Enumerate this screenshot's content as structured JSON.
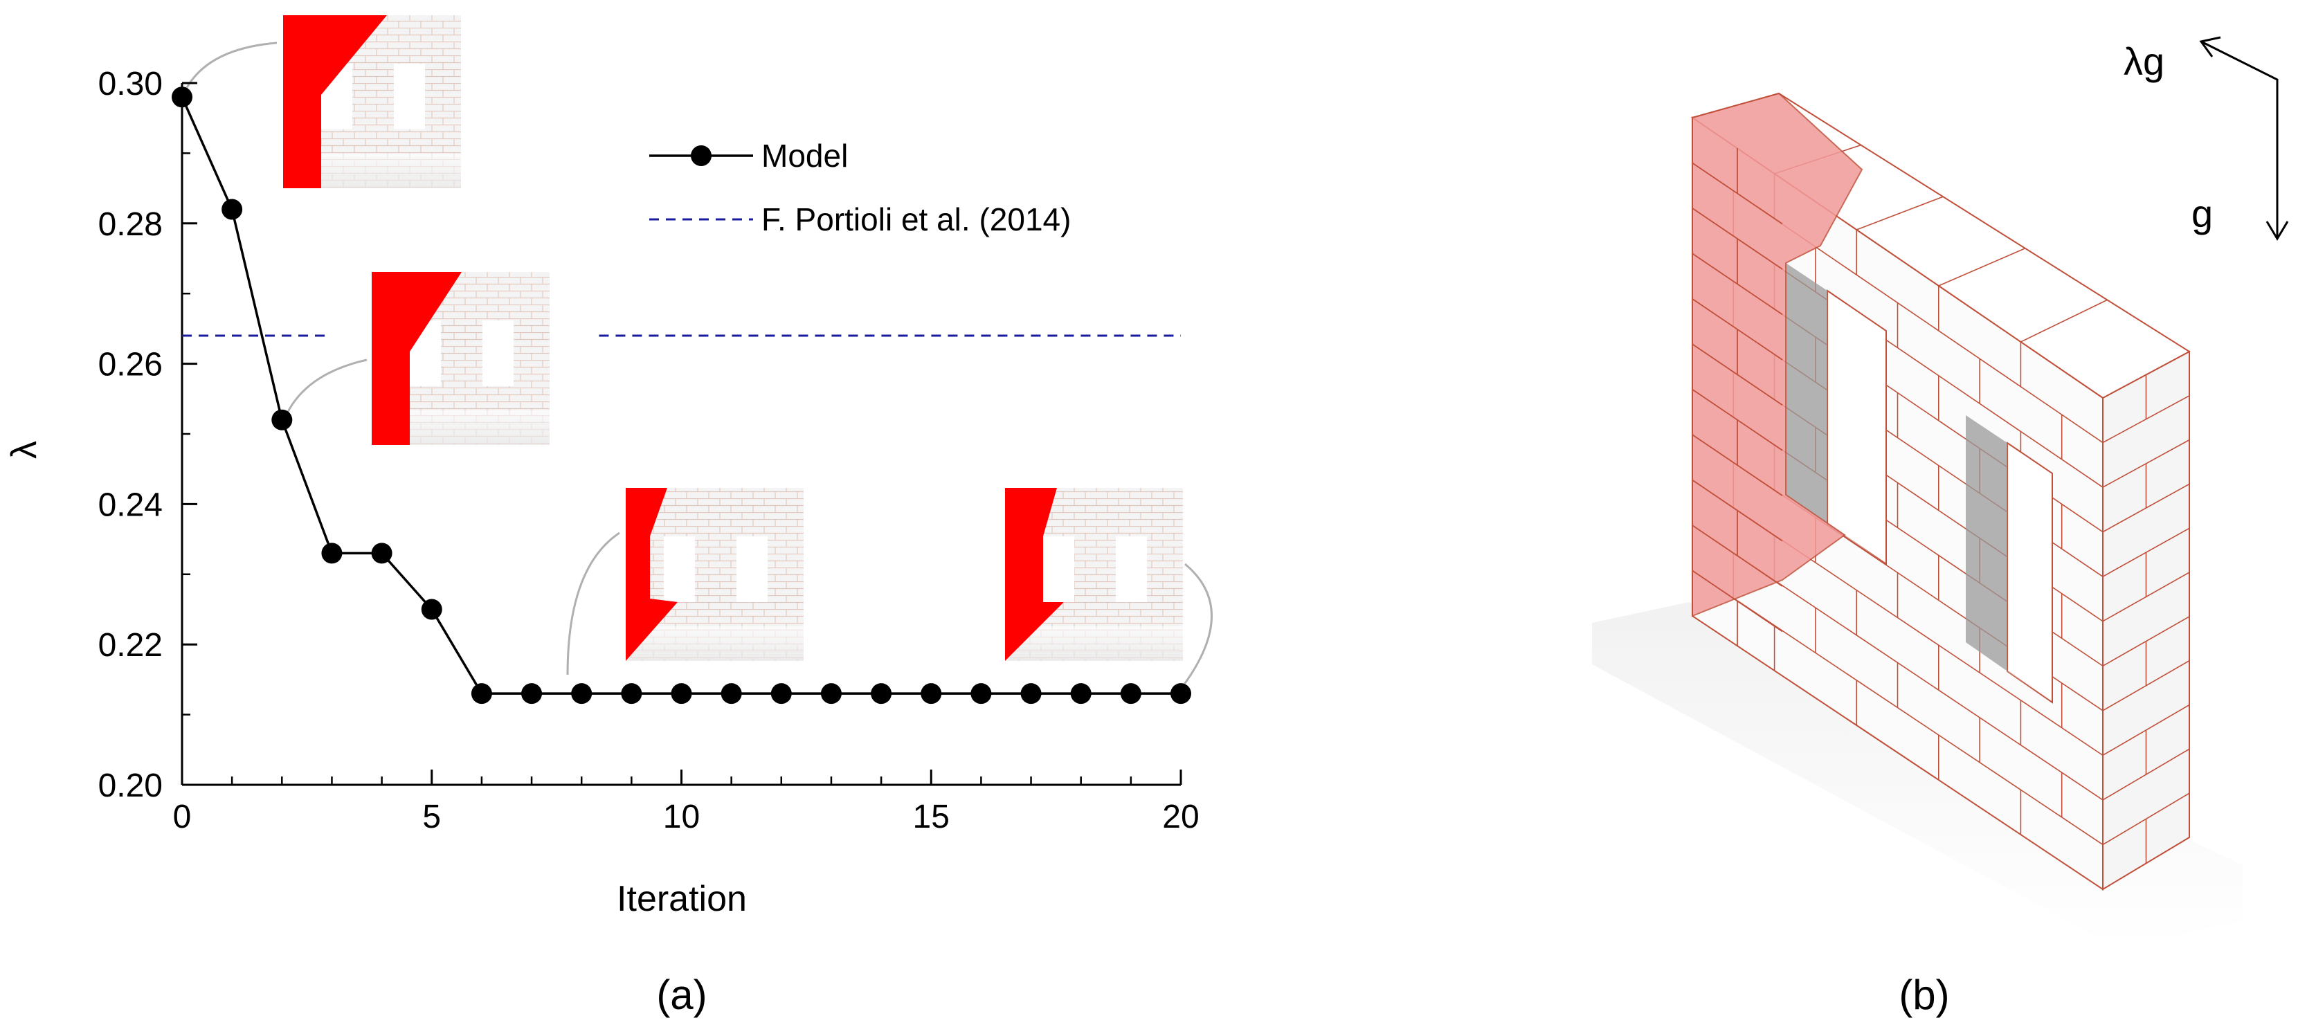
{
  "chart_data": {
    "type": "line",
    "xlabel": "Iteration",
    "ylabel": "λ",
    "xlim": [
      0,
      20
    ],
    "ylim": [
      0.2,
      0.3
    ],
    "xticks": [
      0,
      5,
      10,
      15,
      20
    ],
    "yticks": [
      0.2,
      0.22,
      0.24,
      0.26,
      0.28,
      0.3
    ],
    "xtick_labels": [
      "0",
      "5",
      "10",
      "15",
      "20"
    ],
    "ytick_labels": [
      "0.20",
      "0.22",
      "0.24",
      "0.26",
      "0.28",
      "0.30"
    ],
    "grid": false,
    "legend_position": "top-right",
    "series": [
      {
        "name": "Model",
        "style": "solid line with filled circle markers",
        "color": "#000000",
        "x": [
          0,
          1,
          2,
          3,
          4,
          5,
          6,
          7,
          8,
          9,
          10,
          11,
          12,
          13,
          14,
          15,
          16,
          17,
          18,
          19,
          20
        ],
        "y": [
          0.298,
          0.282,
          0.252,
          0.233,
          0.233,
          0.225,
          0.213,
          0.213,
          0.213,
          0.213,
          0.213,
          0.213,
          0.213,
          0.213,
          0.213,
          0.213,
          0.213,
          0.213,
          0.213,
          0.213,
          0.213
        ]
      },
      {
        "name": "F. Portioli et al. (2014)",
        "style": "dashed reference line",
        "color": "#1a1a9c",
        "y_constant": 0.264
      }
    ],
    "insets": [
      {
        "iteration": 0,
        "description": "wall failure mechanism thumbnail"
      },
      {
        "iteration": 2,
        "description": "wall failure mechanism thumbnail"
      },
      {
        "iteration": 8,
        "description": "wall failure mechanism thumbnail"
      },
      {
        "iteration": 20,
        "description": "wall failure mechanism thumbnail"
      }
    ]
  },
  "panels": {
    "a_label": "(a)",
    "b_label": "(b)"
  },
  "diagram_b": {
    "load_arrow_lateral": "λg",
    "load_arrow_gravity": "g",
    "failed_block_color": "#f29a9a",
    "brick_line_color": "#c0503a"
  },
  "colors": {
    "failure_red": "#ff0000",
    "reference_blue": "#1a1a9c"
  }
}
